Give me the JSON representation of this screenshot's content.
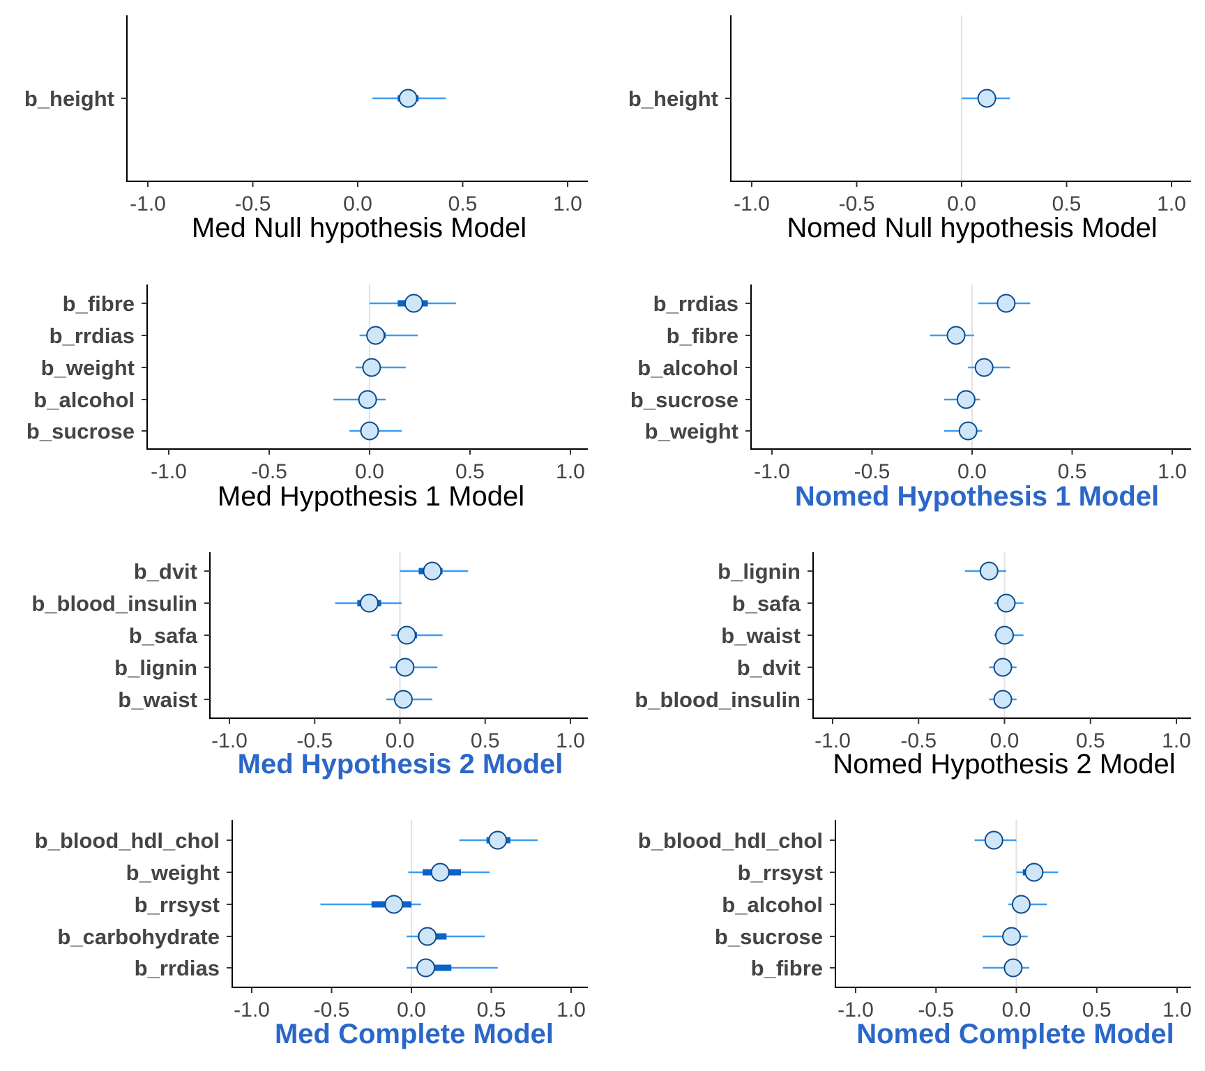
{
  "colors": {
    "ci_outer": "#3d9cf0",
    "ci_inner": "#0a64c8",
    "point_fill": "#cfe6f8",
    "point_stroke": "#0d4a8c",
    "highlight_title": "#2b67c9",
    "normal_title": "#000000",
    "label_text": "#444444",
    "zero_line": "#e2e2e2"
  },
  "chart_data": [
    {
      "type": "interval",
      "title": "Med Null hypothesis Model",
      "title_highlight": false,
      "xlim": [
        -1.1,
        1.1
      ],
      "xticks": [
        "-1.0",
        "-0.5",
        "0.0",
        "0.5",
        "1.0"
      ],
      "zero_line": false,
      "params": [
        {
          "name": "b_height",
          "est": 0.24,
          "inner": [
            0.19,
            0.29
          ],
          "outer": [
            0.07,
            0.42
          ]
        }
      ]
    },
    {
      "type": "interval",
      "title": "Nomed Null hypothesis Model",
      "title_highlight": false,
      "xlim": [
        -1.1,
        1.1
      ],
      "xticks": [
        "-1.0",
        "-0.5",
        "0.0",
        "0.5",
        "1.0"
      ],
      "zero_line": true,
      "params": [
        {
          "name": "b_height",
          "est": 0.12,
          "inner": [
            0.1,
            0.14
          ],
          "outer": [
            0.0,
            0.23
          ]
        }
      ]
    },
    {
      "type": "interval",
      "title": "Med Hypothesis 1 Model",
      "title_highlight": false,
      "xlim": [
        -1.1,
        1.1
      ],
      "xticks": [
        "-1.0",
        "-0.5",
        "0.0",
        "0.5",
        "1.0"
      ],
      "zero_line": true,
      "params": [
        {
          "name": "b_fibre",
          "est": 0.22,
          "inner": [
            0.14,
            0.29
          ],
          "outer": [
            0.0,
            0.43
          ]
        },
        {
          "name": "b_rrdias",
          "est": 0.03,
          "inner": [
            0.0,
            0.08
          ],
          "outer": [
            -0.05,
            0.24
          ]
        },
        {
          "name": "b_weight",
          "est": 0.01,
          "inner": [
            -0.01,
            0.04
          ],
          "outer": [
            -0.07,
            0.18
          ]
        },
        {
          "name": "b_alcohol",
          "est": -0.01,
          "inner": [
            -0.03,
            0.01
          ],
          "outer": [
            -0.18,
            0.08
          ]
        },
        {
          "name": "b_sucrose",
          "est": 0.0,
          "inner": [
            -0.02,
            0.02
          ],
          "outer": [
            -0.1,
            0.16
          ]
        }
      ]
    },
    {
      "type": "interval",
      "title": "Nomed Hypothesis 1 Model",
      "title_highlight": true,
      "xlim": [
        -1.1,
        1.1
      ],
      "xticks": [
        "-1.0",
        "-0.5",
        "0.0",
        "0.5",
        "1.0"
      ],
      "zero_line": true,
      "params": [
        {
          "name": "b_rrdias",
          "est": 0.17,
          "inner": [
            0.15,
            0.19
          ],
          "outer": [
            0.03,
            0.29
          ]
        },
        {
          "name": "b_fibre",
          "est": -0.08,
          "inner": [
            -0.1,
            -0.06
          ],
          "outer": [
            -0.21,
            0.01
          ]
        },
        {
          "name": "b_alcohol",
          "est": 0.06,
          "inner": [
            0.04,
            0.08
          ],
          "outer": [
            -0.02,
            0.19
          ]
        },
        {
          "name": "b_sucrose",
          "est": -0.03,
          "inner": [
            -0.05,
            -0.01
          ],
          "outer": [
            -0.14,
            0.04
          ]
        },
        {
          "name": "b_weight",
          "est": -0.02,
          "inner": [
            -0.04,
            0.0
          ],
          "outer": [
            -0.14,
            0.05
          ]
        }
      ]
    },
    {
      "type": "interval",
      "title": "Med Hypothesis 2 Model",
      "title_highlight": true,
      "xlim": [
        -1.1,
        1.1
      ],
      "xticks": [
        "-1.0",
        "-0.5",
        "0.0",
        "0.5",
        "1.0"
      ],
      "zero_line": true,
      "params": [
        {
          "name": "b_dvit",
          "est": 0.19,
          "inner": [
            0.11,
            0.25
          ],
          "outer": [
            0.0,
            0.4
          ]
        },
        {
          "name": "b_blood_insulin",
          "est": -0.18,
          "inner": [
            -0.25,
            -0.11
          ],
          "outer": [
            -0.38,
            0.01
          ]
        },
        {
          "name": "b_safa",
          "est": 0.04,
          "inner": [
            0.0,
            0.1
          ],
          "outer": [
            -0.05,
            0.25
          ]
        },
        {
          "name": "b_lignin",
          "est": 0.03,
          "inner": [
            -0.01,
            0.08
          ],
          "outer": [
            -0.06,
            0.22
          ]
        },
        {
          "name": "b_waist",
          "est": 0.02,
          "inner": [
            0.0,
            0.04
          ],
          "outer": [
            -0.08,
            0.19
          ]
        }
      ]
    },
    {
      "type": "interval",
      "title": "Nomed Hypothesis 2 Model",
      "title_highlight": false,
      "xlim": [
        -1.1,
        1.1
      ],
      "xticks": [
        "-1.0",
        "-0.5",
        "0.0",
        "0.5",
        "1.0"
      ],
      "zero_line": true,
      "params": [
        {
          "name": "b_lignin",
          "est": -0.09,
          "inner": [
            -0.11,
            -0.04
          ],
          "outer": [
            -0.23,
            0.01
          ]
        },
        {
          "name": "b_safa",
          "est": 0.01,
          "inner": [
            -0.01,
            0.03
          ],
          "outer": [
            -0.06,
            0.11
          ]
        },
        {
          "name": "b_waist",
          "est": 0.0,
          "inner": [
            -0.02,
            0.02
          ],
          "outer": [
            -0.06,
            0.11
          ]
        },
        {
          "name": "b_dvit",
          "est": -0.01,
          "inner": [
            -0.03,
            0.01
          ],
          "outer": [
            -0.09,
            0.07
          ]
        },
        {
          "name": "b_blood_insulin",
          "est": -0.01,
          "inner": [
            -0.03,
            0.01
          ],
          "outer": [
            -0.09,
            0.07
          ]
        }
      ]
    },
    {
      "type": "interval",
      "title": "Med Complete Model",
      "title_highlight": true,
      "xlim": [
        -1.1,
        1.1
      ],
      "xticks": [
        "-1.0",
        "-0.5",
        "0.0",
        "0.5",
        "1.0"
      ],
      "zero_line": true,
      "params": [
        {
          "name": "b_blood_hdl_chol",
          "est": 0.54,
          "inner": [
            0.47,
            0.62
          ],
          "outer": [
            0.3,
            0.79
          ]
        },
        {
          "name": "b_weight",
          "est": 0.18,
          "inner": [
            0.07,
            0.31
          ],
          "outer": [
            -0.02,
            0.49
          ]
        },
        {
          "name": "b_rrsyst",
          "est": -0.11,
          "inner": [
            -0.25,
            0.0
          ],
          "outer": [
            -0.57,
            0.06
          ]
        },
        {
          "name": "b_carbohydrate",
          "est": 0.1,
          "inner": [
            0.04,
            0.22
          ],
          "outer": [
            -0.03,
            0.46
          ]
        },
        {
          "name": "b_rrdias",
          "est": 0.09,
          "inner": [
            0.04,
            0.25
          ],
          "outer": [
            -0.03,
            0.54
          ]
        }
      ]
    },
    {
      "type": "interval",
      "title": "Nomed Complete Model",
      "title_highlight": true,
      "xlim": [
        -1.1,
        1.1
      ],
      "xticks": [
        "-1.0",
        "-0.5",
        "0.0",
        "0.5",
        "1.0"
      ],
      "zero_line": true,
      "params": [
        {
          "name": "b_blood_hdl_chol",
          "est": -0.14,
          "inner": [
            -0.16,
            -0.12
          ],
          "outer": [
            -0.26,
            0.0
          ]
        },
        {
          "name": "b_rrsyst",
          "est": 0.11,
          "inner": [
            0.04,
            0.14
          ],
          "outer": [
            0.0,
            0.26
          ]
        },
        {
          "name": "b_alcohol",
          "est": 0.03,
          "inner": [
            0.01,
            0.05
          ],
          "outer": [
            -0.05,
            0.19
          ]
        },
        {
          "name": "b_sucrose",
          "est": -0.03,
          "inner": [
            -0.05,
            -0.01
          ],
          "outer": [
            -0.21,
            0.07
          ]
        },
        {
          "name": "b_fibre",
          "est": -0.02,
          "inner": [
            -0.04,
            0.0
          ],
          "outer": [
            -0.21,
            0.08
          ]
        }
      ]
    }
  ]
}
